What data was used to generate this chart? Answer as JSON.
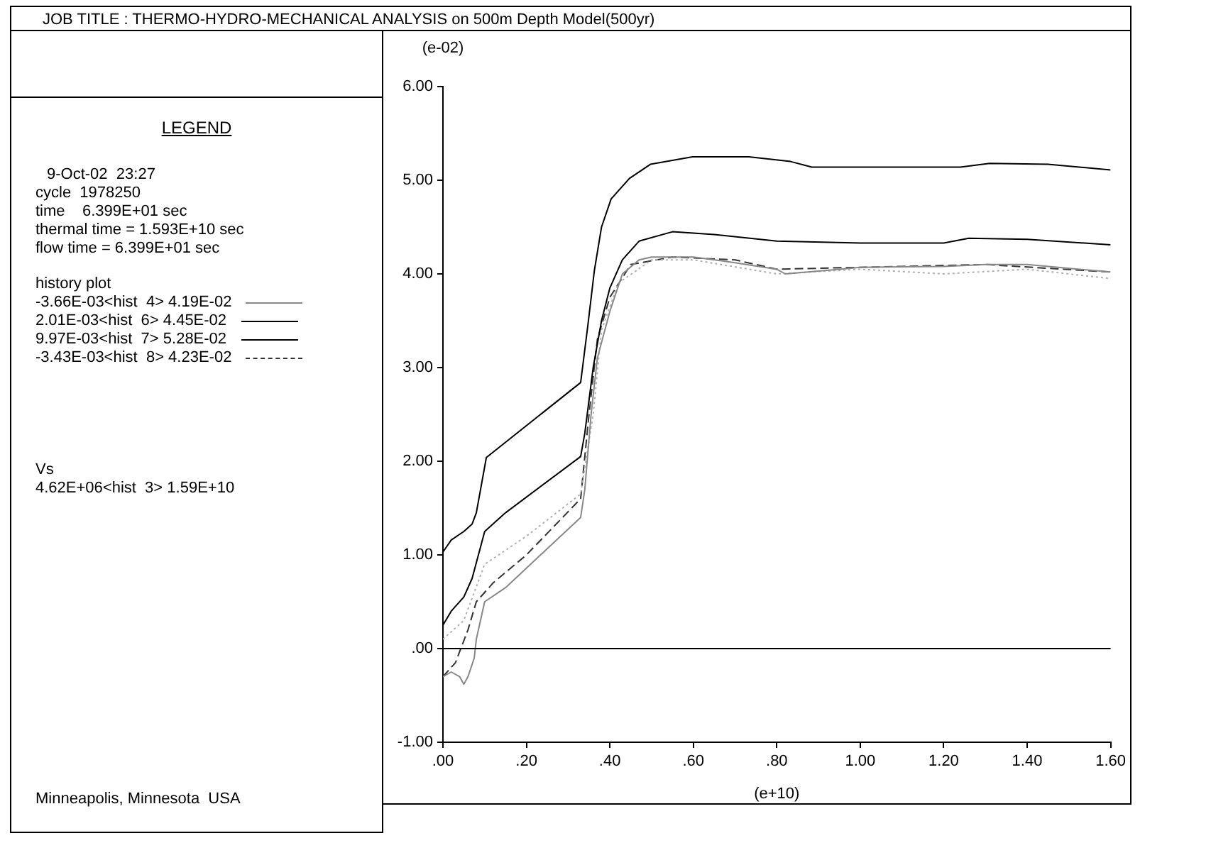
{
  "chart_data": {
    "type": "line",
    "title": "JOB TITLE : THERMO-HYDRO-MECHANICAL ANALYSIS on 500m Depth Model(500yr)",
    "subtitle": "LEGEND",
    "legend_title": "history plot",
    "xlabel": "(e+10)",
    "ylabel": "(e-02)",
    "annotations": [
      "9-Oct-02  23:27",
      "cycle  1978250",
      "time    6.399E+01 sec",
      "thermal time = 1.593E+10 sec",
      "flow time = 6.399E+01 sec",
      "Vs",
      "4.62E+06<hist  3> 1.59E+10",
      "Minneapolis, Minnesota  USA"
    ],
    "xlim": [
      0,
      1.6
    ],
    "xticks": [
      {
        "value": 0,
        "label": ".00"
      },
      {
        "value": 0.2,
        "label": ".20"
      },
      {
        "value": 0.4,
        "label": ".40"
      },
      {
        "value": 0.6,
        "label": ".60"
      },
      {
        "value": 0.8,
        "label": ".80"
      },
      {
        "value": 1.0,
        "label": "1.00"
      },
      {
        "value": 1.2,
        "label": "1.20"
      },
      {
        "value": 1.4,
        "label": "1.40"
      },
      {
        "value": 1.6,
        "label": "1.60"
      }
    ],
    "ylim": [
      -1,
      6
    ],
    "yticks": [
      {
        "value": -1,
        "label": "-1.00"
      },
      {
        "value": 0,
        "label": ".00"
      },
      {
        "value": 1,
        "label": "1.00"
      },
      {
        "value": 2,
        "label": "2.00"
      },
      {
        "value": 3,
        "label": "3.00"
      },
      {
        "value": 4,
        "label": "4.00"
      },
      {
        "value": 5,
        "label": "5.00"
      },
      {
        "value": 6,
        "label": "6.00"
      }
    ],
    "grid": false,
    "legend": "left",
    "marker": "none",
    "ref_lines": [
      {
        "axis": "y",
        "value": 0,
        "color": "#000000"
      }
    ],
    "series": [
      {
        "name": "-3.66E-03<hist  4> 4.19E-02",
        "color": "#888888",
        "line_style": "solid",
        "x": [
          0,
          0.02,
          0.04,
          0.05,
          0.06,
          0.075,
          0.08,
          0.1,
          0.15,
          0.33,
          0.34,
          0.355,
          0.37,
          0.4,
          0.43,
          0.47,
          0.5,
          0.6,
          0.7,
          0.8,
          0.82,
          0.95,
          1.0,
          1.2,
          1.3,
          1.4,
          1.6
        ],
        "values": [
          -0.3,
          -0.25,
          -0.3,
          -0.38,
          -0.3,
          -0.1,
          0.1,
          0.5,
          0.65,
          1.4,
          1.7,
          2.5,
          3.1,
          3.6,
          4.0,
          4.15,
          4.18,
          4.18,
          4.12,
          4.05,
          4.0,
          4.05,
          4.07,
          4.08,
          4.1,
          4.1,
          4.02
        ]
      },
      {
        "color": "#b0b0b0",
        "line_style": "dotted",
        "x": [
          0,
          0.05,
          0.1,
          0.2,
          0.33,
          0.36,
          0.38,
          0.42,
          0.5,
          0.6,
          0.8,
          1.0,
          1.2,
          1.4,
          1.6
        ],
        "values": [
          0.1,
          0.3,
          0.9,
          1.2,
          1.65,
          2.5,
          3.4,
          3.9,
          4.15,
          4.15,
          4.0,
          4.05,
          4.0,
          4.05,
          3.95
        ]
      },
      {
        "name": "2.01E-03<hist  6> 4.45E-02",
        "color": "#000000",
        "line_style": "solid",
        "x": [
          0,
          0.02,
          0.05,
          0.07,
          0.085,
          0.1,
          0.15,
          0.33,
          0.34,
          0.36,
          0.38,
          0.4,
          0.43,
          0.47,
          0.55,
          0.65,
          0.8,
          1.0,
          1.2,
          1.26,
          1.4,
          1.6
        ],
        "values": [
          0.25,
          0.4,
          0.55,
          0.75,
          1.0,
          1.25,
          1.45,
          2.05,
          2.3,
          3.0,
          3.5,
          3.85,
          4.15,
          4.35,
          4.45,
          4.42,
          4.35,
          4.33,
          4.33,
          4.38,
          4.37,
          4.31
        ]
      },
      {
        "name": "9.97E-03<hist  7> 5.28E-02",
        "color": "#000000",
        "line_style": "solid",
        "x": [
          0,
          0.02,
          0.05,
          0.07,
          0.08,
          0.104,
          0.33,
          0.347,
          0.363,
          0.38,
          0.403,
          0.447,
          0.497,
          0.598,
          0.733,
          0.833,
          0.884,
          1.24,
          1.31,
          1.45,
          1.6
        ],
        "values": [
          1.03,
          1.16,
          1.25,
          1.33,
          1.45,
          2.04,
          2.84,
          3.44,
          4.04,
          4.5,
          4.8,
          5.02,
          5.17,
          5.25,
          5.25,
          5.2,
          5.14,
          5.14,
          5.18,
          5.17,
          5.11
        ]
      },
      {
        "name": "-3.43E-03<hist  8> 4.23E-02",
        "color": "#333333",
        "line_style": "dashed",
        "x": [
          0,
          0.03,
          0.06,
          0.08,
          0.12,
          0.2,
          0.33,
          0.35,
          0.37,
          0.4,
          0.45,
          0.55,
          0.7,
          0.8,
          1.0,
          1.3,
          1.6
        ],
        "values": [
          -0.3,
          -0.15,
          0.2,
          0.5,
          0.7,
          1.0,
          1.6,
          2.5,
          3.3,
          3.75,
          4.1,
          4.18,
          4.15,
          4.05,
          4.07,
          4.1,
          4.02
        ]
      }
    ]
  }
}
